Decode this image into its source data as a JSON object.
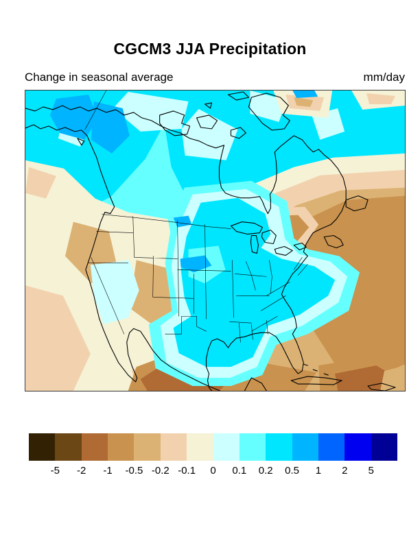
{
  "header": {
    "title": "CGCM3 JJA Precipitation",
    "subtitle_left": "Change in seasonal average",
    "units_label": "mm/day"
  },
  "palette": {
    "c1": "#332103",
    "c2": "#6b4716",
    "c3": "#b06a33",
    "c4": "#c9924e",
    "c5": "#dcb274",
    "c6": "#f2d2ae",
    "c7": "#f5f2d6",
    "c8": "#ccffff",
    "c9": "#66ffff",
    "c10": "#00e6ff",
    "c11": "#00b4ff",
    "c12": "#0064ff",
    "c13": "#0000f0",
    "c14": "#000096",
    "coastline": "#000000",
    "frame": "#3a3a3a"
  },
  "colorbar": {
    "tick_labels": [
      "-5",
      "-2",
      "-1",
      "-0.5",
      "-0.2",
      "-0.1",
      "0",
      "0.1",
      "0.2",
      "0.5",
      "1",
      "2",
      "5"
    ],
    "segments": [
      "c1",
      "c2",
      "c3",
      "c4",
      "c5",
      "c6",
      "c7",
      "c8",
      "c9",
      "c10",
      "c11",
      "c12",
      "c13",
      "c14"
    ]
  },
  "chart_data": {
    "type": "heatmap",
    "subtype": "filled-contour-map",
    "title": "CGCM3 JJA Precipitation",
    "subtitle": "Change in seasonal average",
    "units": "mm/day",
    "region": "North America (Alaska/Arctic Canada to Mexico/Caribbean)",
    "contour_levels": [
      -5,
      -2,
      -1,
      -0.5,
      -0.2,
      -0.1,
      0,
      0.1,
      0.2,
      0.5,
      1,
      2,
      5
    ],
    "palette_hex": [
      "#332103",
      "#6b4716",
      "#b06a33",
      "#c9924e",
      "#dcb274",
      "#f2d2ae",
      "#f5f2d6",
      "#ccffff",
      "#66ffff",
      "#00e6ff",
      "#00b4ff",
      "#0064ff",
      "#0000f0",
      "#000096"
    ],
    "legend_position": "bottom horizontal colorbar",
    "features": [
      {
        "area": "Alaska / Yukon",
        "change_mm_day": "+0.5 to +1"
      },
      {
        "area": "central and eastern Canada, Hudson Bay, Labrador",
        "change_mm_day": "+0.2 to +0.5"
      },
      {
        "area": "Arctic islands",
        "change_mm_day": "0 to +0.2"
      },
      {
        "area": "northern Great Plains (South Dakota spot)",
        "change_mm_day": "+0.5 to +1"
      },
      {
        "area": "central US, Midwest, mid-Atlantic, Texas",
        "change_mm_day": "+0.2 to +0.5"
      },
      {
        "area": "western US interior and Great Basin",
        "change_mm_day": "-0.1 to -0.5"
      },
      {
        "area": "Great Lakes, New England, northwest Atlantic",
        "change_mm_day": "-0.5 to -1"
      },
      {
        "area": "Mexico and Gulf of Mexico",
        "change_mm_day": "-0.5 to -2"
      },
      {
        "area": "Caribbean",
        "change_mm_day": "-1 to -2"
      },
      {
        "area": "northeast Pacific off California",
        "change_mm_day": "0 to -0.2"
      }
    ]
  }
}
